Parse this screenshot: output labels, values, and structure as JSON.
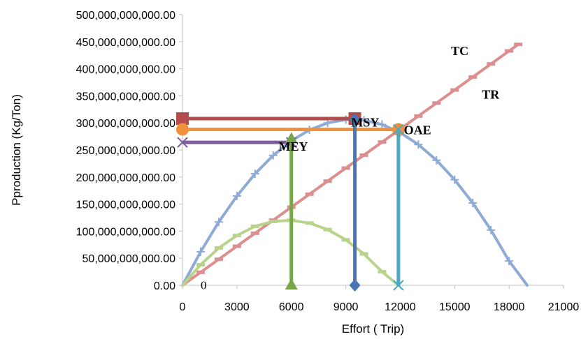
{
  "chart_data": {
    "type": "line",
    "title": "",
    "xlabel": "Effort ( Trip)",
    "ylabel": "Pproduction (Kg/Ton)",
    "xlim": [
      0,
      21000
    ],
    "ylim": [
      0,
      500000000000
    ],
    "x_ticks": [
      "0",
      "3000",
      "6000",
      "9000",
      "12000",
      "15000",
      "18000",
      "21000"
    ],
    "x_tick_values": [
      0,
      3000,
      6000,
      9000,
      12000,
      15000,
      18000,
      21000
    ],
    "y_ticks": [
      "0.00",
      "50,000,000,000.00",
      "100,000,000,000.00",
      "150,000,000,000.00",
      "200,000,000,000.00",
      "250,000,000,000.00",
      "300,000,000,000.00",
      "350,000,000,000.00",
      "400,000,000,000.00",
      "450,000,000,000.00",
      "500,000,000,000.00"
    ],
    "y_tick_values": [
      0,
      50000000000,
      100000000000,
      150000000000,
      200000000000,
      250000000000,
      300000000000,
      350000000000,
      400000000000,
      450000000000,
      500000000000
    ],
    "grid": false,
    "legend": "none",
    "series": [
      {
        "id": "tr",
        "color": "#8eaad6",
        "marker": "plus",
        "x": [
          0,
          1000,
          2000,
          3000,
          4000,
          5000,
          6000,
          7000,
          8000,
          9000,
          10000,
          11000,
          12000,
          13000,
          14000,
          15000,
          16000,
          17000,
          18000,
          19000
        ],
        "y": [
          0,
          62000000000,
          117000000000,
          165000000000,
          206000000000,
          240000000000,
          267000000000,
          287000000000,
          300000000000,
          306000000000,
          305000000000,
          297000000000,
          282000000000,
          260000000000,
          231000000000,
          195000000000,
          152000000000,
          102000000000,
          45000000000,
          0
        ],
        "marker_x": [
          1000,
          2000,
          3000,
          4000,
          5000,
          6000,
          7000,
          8000,
          9000,
          10000,
          11000,
          12000,
          13000,
          14000,
          15000,
          16000,
          17000,
          18000
        ]
      },
      {
        "id": "tc",
        "color": "#dd8e8e",
        "marker": "dash",
        "x": [
          0,
          18500
        ],
        "y": [
          0,
          445000000000
        ],
        "marker_x": [
          1000,
          2000,
          3000,
          4000,
          5000,
          6000,
          7000,
          8000,
          9000,
          10000,
          11000,
          12000,
          13000,
          14000,
          15000,
          16000,
          17000,
          18000,
          18500
        ]
      },
      {
        "id": "profit",
        "color": "#b9d38b",
        "marker": "dash",
        "x": [
          0,
          1000,
          2000,
          3000,
          4000,
          5000,
          6000,
          7000,
          8000,
          9000,
          10000,
          11000,
          11900
        ],
        "y": [
          0,
          38000000000,
          69000000000,
          92000000000,
          109000000000,
          118000000000,
          120000000000,
          115000000000,
          103000000000,
          84000000000,
          58000000000,
          25000000000,
          0
        ],
        "marker_x": [
          1000,
          2000,
          3000,
          4000,
          5000,
          6000,
          7000,
          8000,
          9000,
          10000,
          11000
        ]
      }
    ],
    "reference_lines": [
      {
        "id": "msy-h",
        "color": "#b34d4b",
        "x": [
          0,
          9500
        ],
        "y": [
          308000000000,
          308000000000
        ],
        "marker": "square"
      },
      {
        "id": "oae-h",
        "color": "#f2913d",
        "x": [
          0,
          11900
        ],
        "y": [
          288000000000,
          288000000000
        ],
        "marker": "circle"
      },
      {
        "id": "mey-h",
        "color": "#7d5fa0",
        "x": [
          0,
          6000
        ],
        "y": [
          264000000000,
          264000000000
        ],
        "marker": "x"
      },
      {
        "id": "mey-v",
        "color": "#77a648",
        "x": [
          6000,
          6000
        ],
        "y": [
          0,
          270000000000
        ],
        "marker": "triangle"
      },
      {
        "id": "msy-v",
        "color": "#4a77b4",
        "x": [
          9500,
          9500
        ],
        "y": [
          0,
          306000000000
        ],
        "marker": "diamond"
      },
      {
        "id": "oae-v",
        "color": "#4aa9c4",
        "x": [
          11900,
          11900
        ],
        "y": [
          0,
          288000000000
        ],
        "marker": "x"
      }
    ],
    "annotations": [
      {
        "id": "tc",
        "text": "TC",
        "x": 14800,
        "y": 425000000000,
        "bold": true
      },
      {
        "id": "tr",
        "text": "TR",
        "x": 16500,
        "y": 345000000000,
        "bold": true
      },
      {
        "id": "msy",
        "text": "MSY",
        "x": 9300,
        "y": 293000000000,
        "bold": true
      },
      {
        "id": "oae",
        "text": "OAE",
        "x": 12200,
        "y": 279000000000,
        "bold": true
      },
      {
        "id": "mey",
        "text": "MEY",
        "x": 5300,
        "y": 249000000000,
        "bold": true
      },
      {
        "id": "zero",
        "text": "0",
        "x": 1000,
        "y": -7000000000,
        "bold": false
      }
    ]
  }
}
